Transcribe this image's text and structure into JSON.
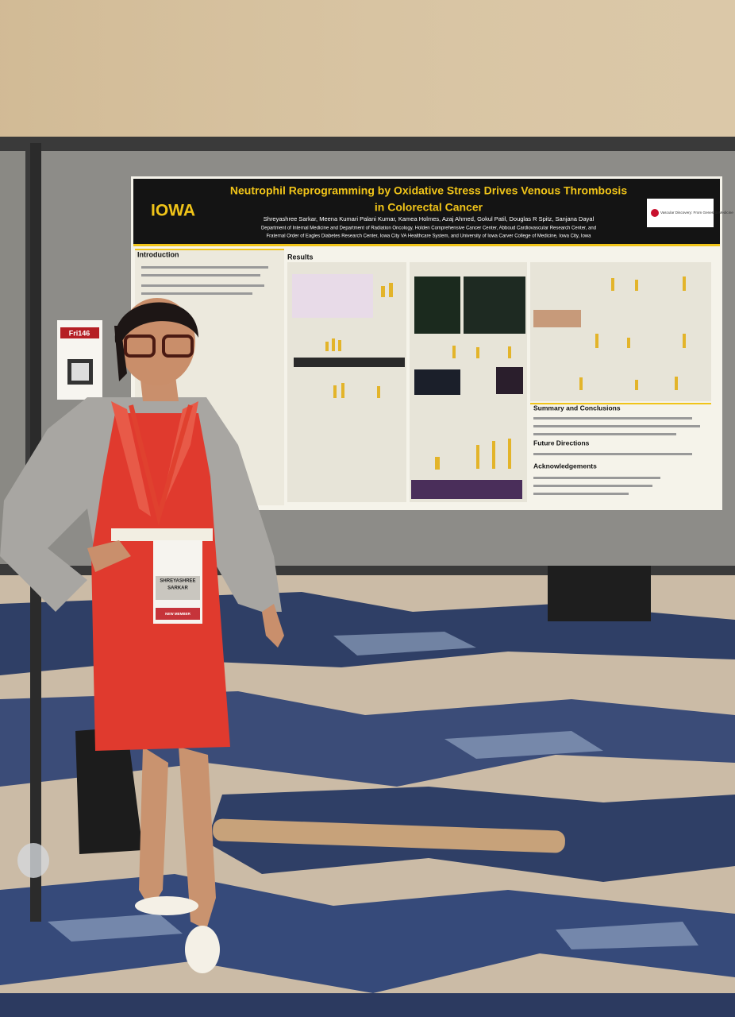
{
  "poster": {
    "logo": "IOWA",
    "title_lines": [
      "Neutrophil Reprogramming by Oxidative Stress Drives Venous Thrombosis",
      "in Colorectal Cancer"
    ],
    "authors": "Shreyashree Sarkar, Meena Kumari Palani Kumar, Kamea Holmes, Azaj Ahmed, Gokul Patil, Douglas R Spitz, Sanjana Dayal",
    "affiliations": [
      "Department of Internal Medicine and Department of Radiation Oncology, Holden Comprehensive Cancer Center, Abboud Cardiovascular Research Center, and",
      "Fraternal Order of Eagles Diabetes Research Center, Iowa City VA Healthcare System, and University of Iowa Carver College of Medicine, Iowa City, Iowa"
    ],
    "sponsor": "Vascular Discovery: From Genes to Medicine",
    "sections": [
      "Introduction",
      "Results",
      "Summary and Conclusions",
      "Future Directions",
      "Acknowledgements"
    ]
  },
  "sign": "Fri146",
  "badge": {
    "first_name": "SHREYASHREE",
    "last_name": "SARKAR",
    "ribbon": "NEW MEMBER"
  }
}
